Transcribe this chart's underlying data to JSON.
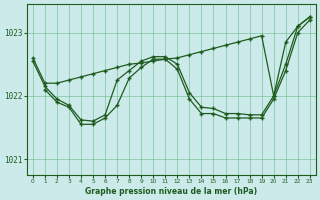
{
  "title": "Graphe pression niveau de la mer (hPa)",
  "bg_color": "#cceaea",
  "grid_color": "#66bb88",
  "line_color": "#1e5c1e",
  "ylim": [
    1020.75,
    1023.45
  ],
  "yticks": [
    1021,
    1022,
    1023
  ],
  "xlim": [
    -0.5,
    23.5
  ],
  "xticks": [
    0,
    1,
    2,
    3,
    4,
    5,
    6,
    7,
    8,
    9,
    10,
    11,
    12,
    13,
    14,
    15,
    16,
    17,
    18,
    19,
    20,
    21,
    22,
    23
  ],
  "hours": [
    0,
    1,
    2,
    3,
    4,
    5,
    6,
    7,
    8,
    9,
    10,
    11,
    12,
    13,
    14,
    15,
    16,
    17,
    18,
    19,
    20,
    21,
    22,
    23
  ],
  "line_upper": [
    1022.6,
    1022.2,
    1022.2,
    1022.25,
    1022.3,
    1022.35,
    1022.4,
    1022.45,
    1022.5,
    1022.52,
    1022.55,
    1022.58,
    1022.6,
    1022.65,
    1022.7,
    1022.75,
    1022.8,
    1022.85,
    1022.9,
    1022.95,
    1022.0,
    1022.85,
    1023.1,
    1023.25
  ],
  "line_mid": [
    1022.55,
    1022.15,
    1021.95,
    1021.85,
    1021.62,
    1021.6,
    1021.7,
    1022.25,
    1022.4,
    1022.55,
    1022.62,
    1022.62,
    1022.5,
    1022.05,
    1021.82,
    1021.8,
    1021.72,
    1021.72,
    1021.7,
    1021.7,
    1022.0,
    1022.5,
    1023.1,
    1023.25
  ],
  "line_low": [
    null,
    1022.1,
    1021.9,
    1021.82,
    1021.55,
    1021.55,
    1021.65,
    1021.85,
    1022.28,
    1022.45,
    1022.58,
    1022.58,
    1022.42,
    1021.95,
    1021.72,
    1021.72,
    1021.65,
    1021.65,
    1021.65,
    1021.65,
    1021.95,
    1022.4,
    1023.0,
    1023.2
  ]
}
